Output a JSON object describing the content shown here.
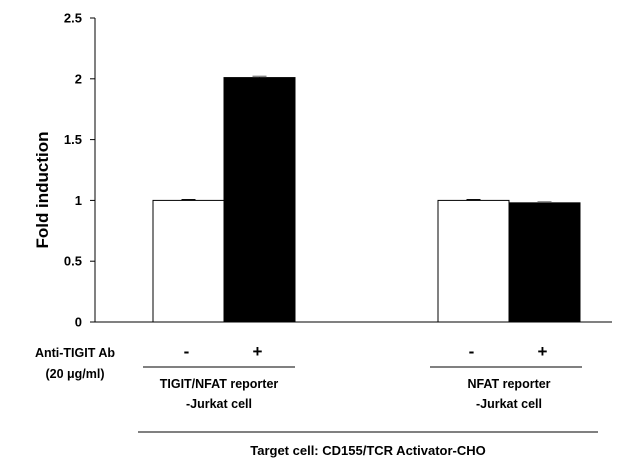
{
  "chart_data": {
    "type": "bar",
    "ylabel": "Fold induction",
    "ylim": [
      0,
      2.5
    ],
    "yticks": [
      "0",
      "0.5",
      "1",
      "1.5",
      "2",
      "2.5"
    ],
    "groups": [
      {
        "label_line1": "TIGIT/NFAT reporter",
        "label_line2": "-Jurkat cell",
        "bars": [
          {
            "treatment": "-",
            "value": 1.0,
            "error": 0.005,
            "fill": "#ffffff"
          },
          {
            "treatment": "+",
            "value": 2.01,
            "error": 0.01,
            "fill": "#000000"
          }
        ]
      },
      {
        "label_line1": "NFAT reporter",
        "label_line2": "-Jurkat cell",
        "bars": [
          {
            "treatment": "-",
            "value": 1.0,
            "error": 0.005,
            "fill": "#ffffff"
          },
          {
            "treatment": "+",
            "value": 0.98,
            "error": 0.008,
            "fill": "#000000"
          }
        ]
      }
    ],
    "treatment_label_line1": "Anti-TIGIT Ab",
    "treatment_label_line2": "(20 μg/ml)",
    "footer": "Target cell: CD155/TCR Activator-CHO"
  }
}
